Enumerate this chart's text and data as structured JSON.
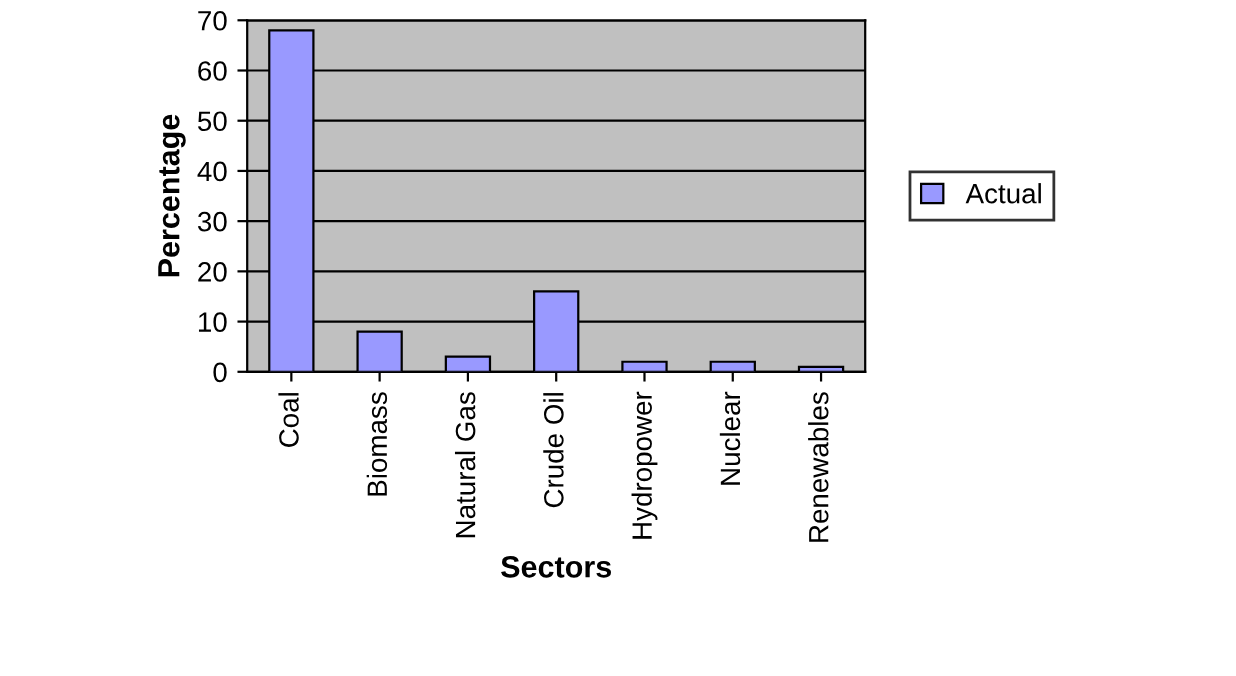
{
  "chart_data": {
    "type": "bar",
    "xlabel": "Sectors",
    "ylabel": "Percentage",
    "categories": [
      "Coal",
      "Biomass",
      "Natural Gas",
      "Crude Oil",
      "Hydropower",
      "Nuclear",
      "Renewables"
    ],
    "series": [
      {
        "name": "Actual",
        "color": "#9999ff",
        "values": [
          68,
          8,
          3,
          16,
          2,
          2,
          1
        ]
      }
    ],
    "ylim": [
      0,
      70
    ],
    "yticks": [
      0,
      10,
      20,
      30,
      40,
      50,
      60,
      70
    ],
    "grid": "y",
    "legend": "right"
  }
}
